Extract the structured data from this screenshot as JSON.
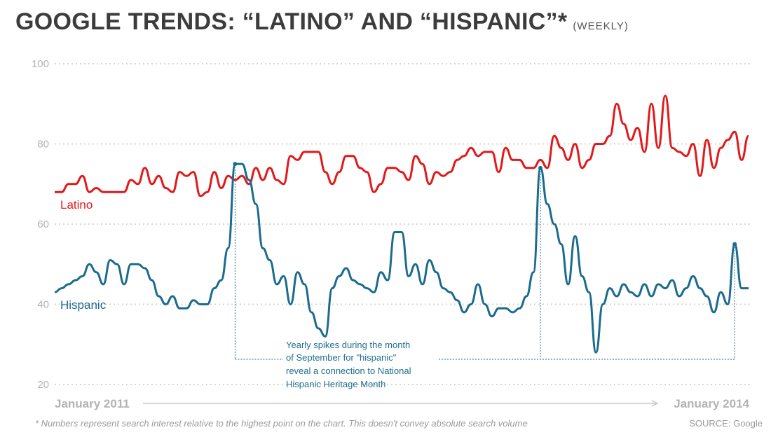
{
  "title": "GOOGLE TRENDS: “LATINO” AND “HISPANIC”*",
  "subtitle": "(WEEKLY)",
  "footnote": "* Numbers represent search interest relative to the highest point on the chart. This doesn't convey absolute search volume",
  "source": "SOURCE: Google",
  "colors": {
    "latino": "#e2191b",
    "hispanic": "#1b6b8e",
    "annotation": "#1f6e8f",
    "grid": "#d9d6c4",
    "axis_text": "#b3b3b3"
  },
  "chart_data": {
    "type": "line",
    "title": "Google Trends: “Latino” and “Hispanic”",
    "xlabel": "",
    "ylabel": "",
    "ylim": [
      20,
      100
    ],
    "yticks": [
      "20",
      "40",
      "60",
      "80",
      "100"
    ],
    "x_range": [
      0,
      100
    ],
    "x_start_label": "January 2011",
    "x_end_label": "January 2014",
    "series": [
      {
        "name": "Latino",
        "points": [
          [
            0,
            68
          ],
          [
            1,
            68
          ],
          [
            2,
            70
          ],
          [
            3,
            70
          ],
          [
            4,
            72
          ],
          [
            5,
            68
          ],
          [
            6,
            69
          ],
          [
            7,
            68
          ],
          [
            8,
            68
          ],
          [
            9,
            68
          ],
          [
            10,
            68
          ],
          [
            11,
            71
          ],
          [
            12,
            70
          ],
          [
            13,
            74
          ],
          [
            14,
            70
          ],
          [
            15,
            72
          ],
          [
            16,
            69
          ],
          [
            17,
            68
          ],
          [
            18,
            73
          ],
          [
            19,
            72
          ],
          [
            20,
            73
          ],
          [
            21,
            67
          ],
          [
            22,
            68
          ],
          [
            23,
            73
          ],
          [
            24,
            69
          ],
          [
            25,
            72
          ],
          [
            26,
            71
          ],
          [
            27,
            72
          ],
          [
            28,
            70
          ],
          [
            29,
            74
          ],
          [
            30,
            71
          ],
          [
            31,
            74
          ],
          [
            32,
            71
          ],
          [
            33,
            70
          ],
          [
            34,
            77
          ],
          [
            35,
            76
          ],
          [
            36,
            78
          ],
          [
            37,
            78
          ],
          [
            38,
            78
          ],
          [
            39,
            73
          ],
          [
            40,
            70
          ],
          [
            41,
            73
          ],
          [
            42,
            77
          ],
          [
            43,
            77
          ],
          [
            44,
            74
          ],
          [
            45,
            73
          ],
          [
            46,
            68
          ],
          [
            47,
            70
          ],
          [
            48,
            74
          ],
          [
            49,
            74
          ],
          [
            50,
            73
          ],
          [
            51,
            71
          ],
          [
            52,
            77
          ],
          [
            53,
            75
          ],
          [
            54,
            70
          ],
          [
            55,
            73
          ],
          [
            56,
            72
          ],
          [
            57,
            73
          ],
          [
            58,
            76
          ],
          [
            59,
            77
          ],
          [
            60,
            79
          ],
          [
            61,
            77
          ],
          [
            62,
            78
          ],
          [
            63,
            78
          ],
          [
            64,
            73
          ],
          [
            65,
            79
          ],
          [
            66,
            76
          ],
          [
            67,
            76
          ],
          [
            68,
            74
          ],
          [
            69,
            74
          ],
          [
            70,
            76
          ],
          [
            71,
            74
          ],
          [
            72,
            82
          ],
          [
            73,
            79
          ],
          [
            74,
            76
          ],
          [
            75,
            80
          ],
          [
            76,
            74
          ],
          [
            77,
            76
          ],
          [
            78,
            80
          ],
          [
            79,
            80
          ],
          [
            80,
            82
          ],
          [
            81,
            90
          ],
          [
            82,
            85
          ],
          [
            83,
            81
          ],
          [
            84,
            84
          ],
          [
            85,
            78
          ],
          [
            86,
            90
          ],
          [
            87,
            79
          ],
          [
            88,
            92
          ],
          [
            89,
            79
          ],
          [
            90,
            78
          ],
          [
            91,
            77
          ],
          [
            92,
            80
          ],
          [
            93,
            72
          ],
          [
            94,
            81
          ],
          [
            95,
            74
          ],
          [
            96,
            79
          ],
          [
            97,
            81
          ],
          [
            98,
            83
          ],
          [
            99,
            76
          ],
          [
            100,
            82
          ]
        ]
      },
      {
        "name": "Hispanic",
        "points": [
          [
            0,
            43
          ],
          [
            1,
            44
          ],
          [
            2,
            45
          ],
          [
            3,
            46
          ],
          [
            4,
            47
          ],
          [
            5,
            50
          ],
          [
            6,
            48
          ],
          [
            7,
            45
          ],
          [
            8,
            51
          ],
          [
            9,
            50
          ],
          [
            10,
            45
          ],
          [
            11,
            50
          ],
          [
            12,
            50
          ],
          [
            13,
            49
          ],
          [
            14,
            46
          ],
          [
            15,
            42
          ],
          [
            16,
            40
          ],
          [
            17,
            42
          ],
          [
            18,
            39
          ],
          [
            19,
            39
          ],
          [
            20,
            41
          ],
          [
            21,
            40
          ],
          [
            22,
            40
          ],
          [
            23,
            44
          ],
          [
            24,
            46
          ],
          [
            25,
            54
          ],
          [
            26,
            75
          ],
          [
            27,
            75
          ],
          [
            28,
            71
          ],
          [
            29,
            65
          ],
          [
            30,
            54
          ],
          [
            31,
            51
          ],
          [
            32,
            45
          ],
          [
            33,
            47
          ],
          [
            34,
            40
          ],
          [
            35,
            48
          ],
          [
            36,
            45
          ],
          [
            37,
            38
          ],
          [
            38,
            34
          ],
          [
            39,
            32
          ],
          [
            40,
            44
          ],
          [
            41,
            47
          ],
          [
            42,
            49
          ],
          [
            43,
            46
          ],
          [
            44,
            45
          ],
          [
            45,
            44
          ],
          [
            46,
            43
          ],
          [
            47,
            48
          ],
          [
            48,
            46
          ],
          [
            49,
            58
          ],
          [
            50,
            58
          ],
          [
            51,
            47
          ],
          [
            52,
            50
          ],
          [
            53,
            45
          ],
          [
            54,
            51
          ],
          [
            55,
            48
          ],
          [
            56,
            44
          ],
          [
            57,
            43
          ],
          [
            58,
            41
          ],
          [
            59,
            38
          ],
          [
            60,
            40
          ],
          [
            61,
            45
          ],
          [
            62,
            40
          ],
          [
            63,
            37
          ],
          [
            64,
            39
          ],
          [
            65,
            39
          ],
          [
            66,
            38
          ],
          [
            67,
            39
          ],
          [
            68,
            42
          ],
          [
            69,
            48
          ],
          [
            70,
            74
          ],
          [
            71,
            65
          ],
          [
            72,
            60
          ],
          [
            73,
            55
          ],
          [
            74,
            45
          ],
          [
            75,
            57
          ],
          [
            76,
            47
          ],
          [
            77,
            43
          ],
          [
            78,
            28
          ],
          [
            79,
            40
          ],
          [
            80,
            44
          ],
          [
            81,
            42
          ],
          [
            82,
            45
          ],
          [
            83,
            43
          ],
          [
            84,
            42
          ],
          [
            85,
            45
          ],
          [
            86,
            42
          ],
          [
            87,
            45
          ],
          [
            88,
            44
          ],
          [
            89,
            46
          ],
          [
            90,
            42
          ],
          [
            91,
            44
          ],
          [
            92,
            47
          ],
          [
            93,
            44
          ],
          [
            94,
            42
          ],
          [
            95,
            38
          ],
          [
            96,
            43
          ],
          [
            97,
            40
          ],
          [
            98,
            55
          ],
          [
            99,
            44
          ],
          [
            100,
            44
          ]
        ]
      }
    ]
  },
  "legend": {
    "latino": "Latino",
    "hispanic": "Hispanic"
  },
  "annotation": {
    "lines": [
      "Yearly spikes during the month",
      "of September for \"hispanic\"",
      "reveal a connection to National",
      "Hispanic Heritage Month"
    ]
  }
}
